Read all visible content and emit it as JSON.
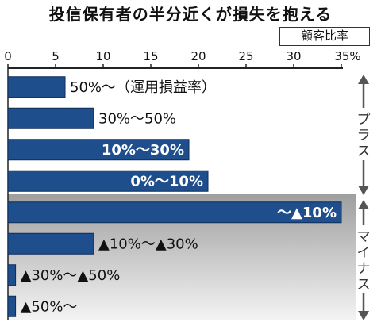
{
  "chart_data": {
    "type": "bar",
    "orientation": "horizontal",
    "title": "投信保有者の半分近くが損失を抱える",
    "legend": "顧客比率",
    "x_ticks": [
      "0",
      "5",
      "10",
      "15",
      "20",
      "25",
      "30",
      "35%"
    ],
    "xlim": [
      0,
      35
    ],
    "categories": [
      "50%〜（運用損益率）",
      "30%〜50%",
      "10%〜30%",
      "0%〜10%",
      "〜▲10%",
      "▲10%〜▲30%",
      "▲30%〜▲50%",
      "▲50%〜"
    ],
    "values": [
      6,
      9,
      19,
      21,
      35,
      9,
      0.8,
      0.8
    ],
    "label_inside": [
      false,
      false,
      true,
      true,
      true,
      false,
      false,
      false
    ],
    "groups": [
      {
        "label": "プラス",
        "range": [
          0,
          3
        ]
      },
      {
        "label": "マイナス",
        "range": [
          4,
          7
        ]
      }
    ],
    "colors": {
      "bar": "#1f4e8c",
      "bar_edge": "#0e2d5a",
      "shade_top": "#9e9e9e",
      "shade_bottom": "#f4f4f4"
    }
  }
}
